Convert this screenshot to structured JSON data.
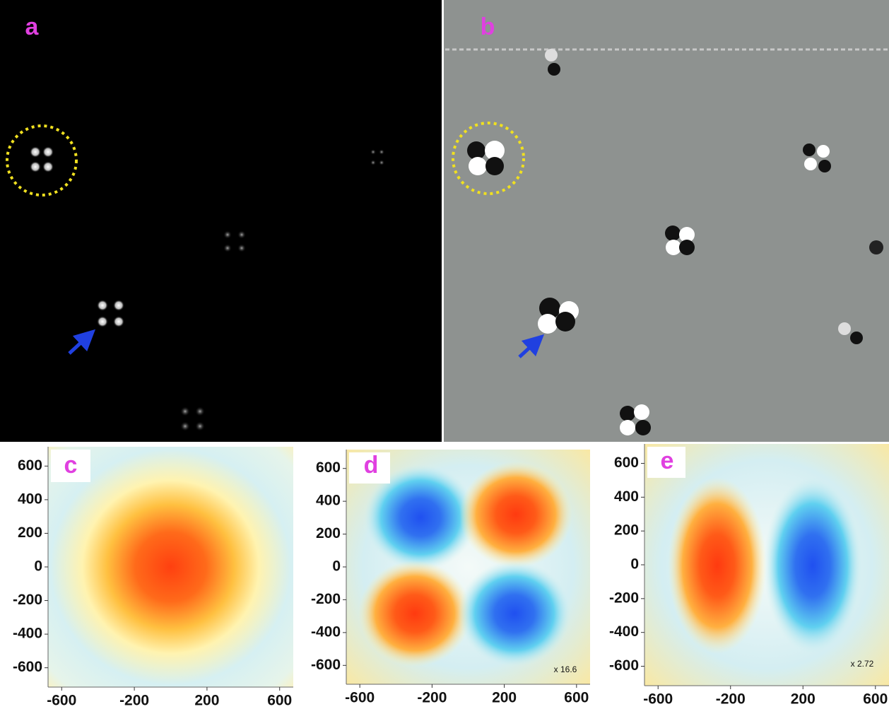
{
  "panels": [
    {
      "label": "a"
    },
    {
      "label": "b"
    },
    {
      "label": "c",
      "xlim": [
        -675,
        675
      ],
      "ylim": [
        -715,
        715
      ],
      "xticks": [
        -600,
        -200,
        200,
        600
      ],
      "yticks": [
        600,
        400,
        200,
        0,
        -200,
        -400,
        -600
      ]
    },
    {
      "label": "d",
      "xlim": [
        -675,
        675
      ],
      "ylim": [
        -715,
        715
      ],
      "xticks": [
        -600,
        -200,
        200,
        600
      ],
      "yticks": [
        600,
        400,
        200,
        0,
        -200,
        -400,
        -600
      ],
      "scale_note": "x 16.6"
    },
    {
      "label": "e",
      "xlim": [
        -675,
        675
      ],
      "ylim": [
        -715,
        715
      ],
      "xticks": [
        -600,
        -200,
        200,
        600
      ],
      "yticks": [
        600,
        400,
        200,
        0,
        -200,
        -400,
        -600
      ],
      "scale_note": "x 2.72"
    }
  ]
}
